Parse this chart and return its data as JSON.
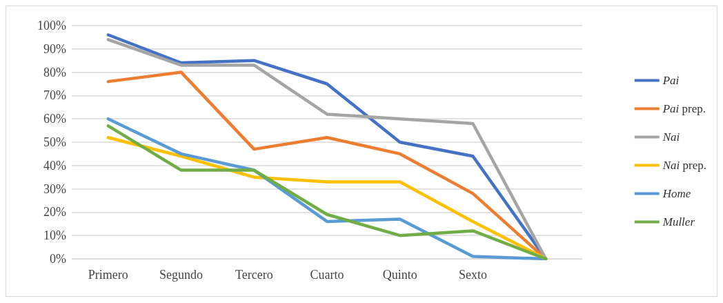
{
  "chart_data": {
    "type": "line",
    "categories": [
      "Primero",
      "Segundo",
      "Tercero",
      "Cuarto",
      "Quinto",
      "Sexto",
      null
    ],
    "series": [
      {
        "name": "Pai",
        "color": "#4472c4",
        "values": [
          96,
          84,
          85,
          75,
          50,
          44,
          0
        ]
      },
      {
        "name": "Pai prep.",
        "color": "#ed7d31",
        "values": [
          76,
          80,
          47,
          52,
          45,
          28,
          0
        ]
      },
      {
        "name": "Nai",
        "color": "#a5a5a5",
        "values": [
          94,
          83,
          83,
          62,
          60,
          58,
          0
        ]
      },
      {
        "name": "Nai prep.",
        "color": "#ffc000",
        "values": [
          52,
          44,
          35,
          33,
          33,
          16,
          0
        ]
      },
      {
        "name": "Home",
        "color": "#5b9bd5",
        "values": [
          60,
          45,
          38,
          16,
          17,
          1,
          0
        ]
      },
      {
        "name": "Muller",
        "color": "#70ad47",
        "values": [
          57,
          38,
          38,
          19,
          10,
          12,
          0
        ]
      }
    ],
    "ylim": [
      0,
      100
    ],
    "yticks": [
      {
        "value": 0,
        "label": "0%"
      },
      {
        "value": 10,
        "label": "10%"
      },
      {
        "value": 20,
        "label": "20%"
      },
      {
        "value": 30,
        "label": "30%"
      },
      {
        "value": 40,
        "label": "40%"
      },
      {
        "value": 50,
        "label": "50%"
      },
      {
        "value": 60,
        "label": "60%"
      },
      {
        "value": 70,
        "label": "70%"
      },
      {
        "value": 80,
        "label": "80%"
      },
      {
        "value": 90,
        "label": "90%"
      },
      {
        "value": 100,
        "label": "100%"
      }
    ],
    "grid": "y",
    "legend": "right",
    "marker": "none",
    "line_style": "solid"
  }
}
